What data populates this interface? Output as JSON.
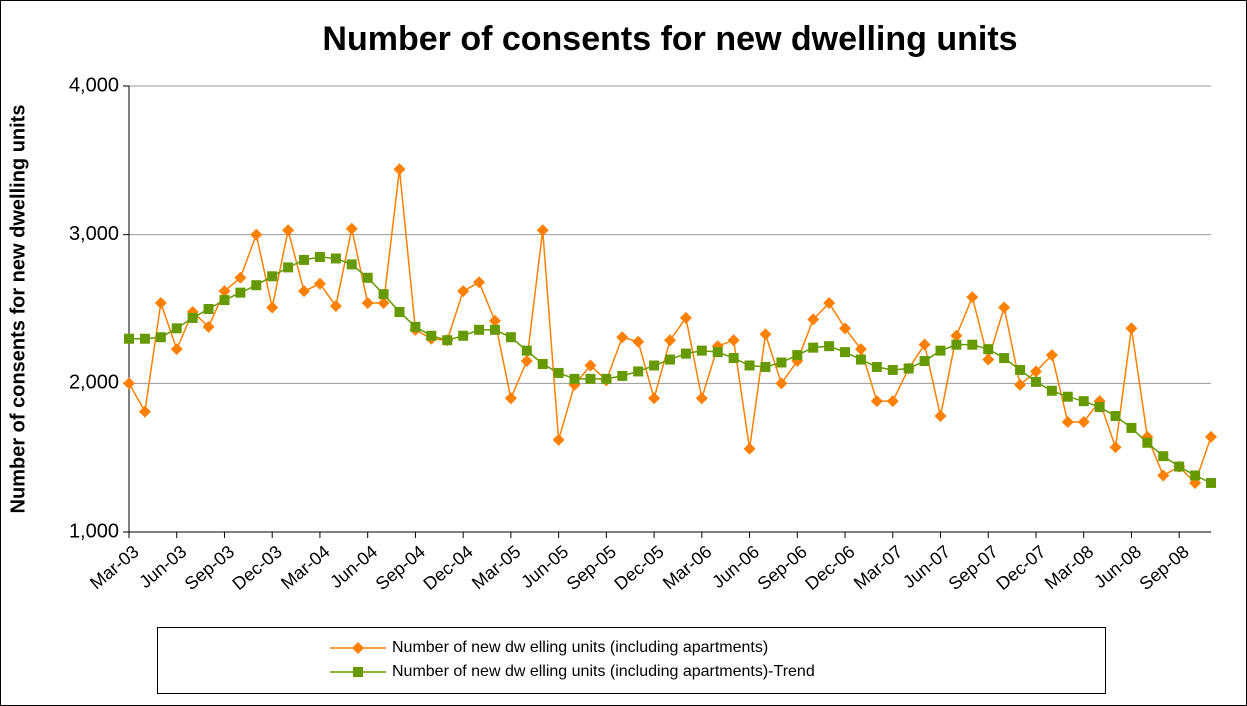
{
  "chart_data": {
    "type": "line",
    "title": "Number of consents for new dwelling units",
    "y_label": "Number of consents for new dwelling units",
    "categories": [
      "Mar-03",
      null,
      null,
      "Jun-03",
      null,
      null,
      "Sep-03",
      null,
      null,
      "Dec-03",
      null,
      null,
      "Mar-04",
      null,
      null,
      "Jun-04",
      null,
      null,
      "Sep-04",
      null,
      null,
      "Dec-04",
      null,
      null,
      "Mar-05",
      null,
      null,
      "Jun-05",
      null,
      null,
      "Sep-05",
      null,
      null,
      "Dec-05",
      null,
      null,
      "Mar-06",
      null,
      null,
      "Jun-06",
      null,
      null,
      "Sep-06",
      null,
      null,
      "Dec-06",
      null,
      null,
      "Mar-07",
      null,
      null,
      "Jun-07",
      null,
      null,
      "Sep-07",
      null,
      null,
      "Dec-07",
      null,
      null,
      "Mar-08",
      null,
      null,
      "Jun-08",
      null,
      null,
      "Sep-08",
      null,
      null
    ],
    "series": [
      {
        "name": "Number of new  dw elling units (including apartments)",
        "color": "#ff8000",
        "marker": "diamond",
        "values": [
          2000,
          1810,
          2540,
          2230,
          2480,
          2380,
          2620,
          2710,
          3000,
          2510,
          3030,
          2620,
          2670,
          2520,
          3040,
          2540,
          2540,
          3440,
          2360,
          2300,
          2290,
          2620,
          2680,
          2420,
          1900,
          2150,
          3030,
          1620,
          1990,
          2120,
          2020,
          2310,
          2280,
          1900,
          2290,
          2440,
          1900,
          2250,
          2290,
          1560,
          2330,
          2000,
          2150,
          2430,
          2540,
          2370,
          2230,
          1880,
          1880,
          2100,
          2260,
          1780,
          2320,
          2580,
          2160,
          2510,
          1990,
          2080,
          2190,
          1740,
          1740,
          1880,
          1570,
          2370,
          1640,
          1380,
          1440,
          1330,
          1640
        ]
      },
      {
        "name": "Number of new  dw elling units (including apartments)-Trend",
        "color": "#669900",
        "marker": "square",
        "values": [
          2300,
          2300,
          2310,
          2370,
          2440,
          2500,
          2560,
          2610,
          2660,
          2720,
          2780,
          2830,
          2850,
          2840,
          2800,
          2710,
          2600,
          2480,
          2380,
          2320,
          2290,
          2320,
          2360,
          2360,
          2310,
          2220,
          2130,
          2070,
          2030,
          2030,
          2030,
          2050,
          2080,
          2120,
          2160,
          2200,
          2220,
          2210,
          2170,
          2120,
          2110,
          2140,
          2190,
          2240,
          2250,
          2210,
          2160,
          2110,
          2090,
          2100,
          2150,
          2220,
          2260,
          2260,
          2230,
          2170,
          2090,
          2010,
          1950,
          1910,
          1880,
          1840,
          1780,
          1700,
          1600,
          1510,
          1440,
          1380,
          1330
        ]
      }
    ],
    "ylim": [
      1000,
      4000
    ],
    "yticks": [
      {
        "value": 1000,
        "label": "1,000"
      },
      {
        "value": 2000,
        "label": "2,000"
      },
      {
        "value": 3000,
        "label": "3,000"
      },
      {
        "value": 4000,
        "label": "4,000"
      }
    ],
    "grid": true,
    "legend": "bottom"
  }
}
